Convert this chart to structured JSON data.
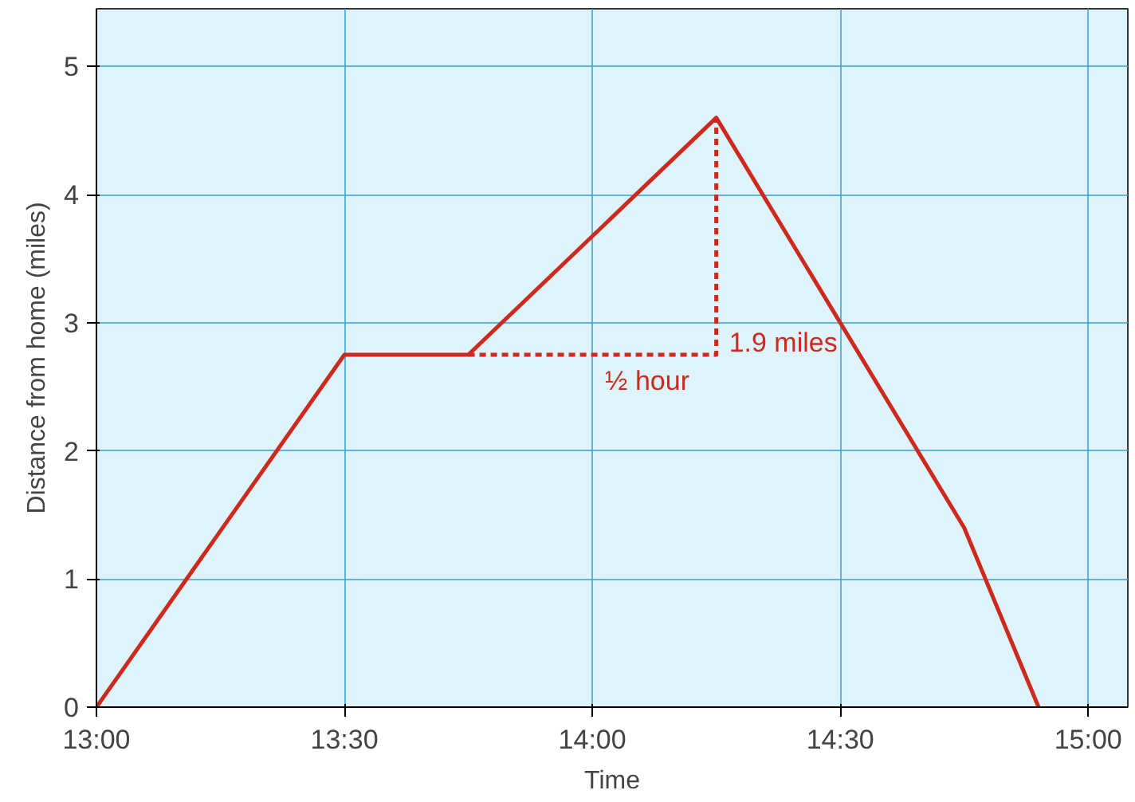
{
  "chart_data": {
    "type": "line",
    "xlabel": "Time",
    "ylabel": "Distance from home (miles)",
    "xlim": [
      13,
      15.08
    ],
    "ylim": [
      0,
      5.45
    ],
    "xticks": [
      {
        "value": 13,
        "label": "13:00"
      },
      {
        "value": 13.5,
        "label": "13:30"
      },
      {
        "value": 14,
        "label": "14:00"
      },
      {
        "value": 14.5,
        "label": "14:30"
      },
      {
        "value": 15,
        "label": "15:00"
      }
    ],
    "yticks": [
      0,
      1,
      2,
      3,
      4,
      5
    ],
    "grid": true,
    "marker": "none",
    "series": [
      {
        "color": "#cc2a1e",
        "line_style": "solid",
        "x": [
          13,
          13.5,
          13.75,
          14.25,
          14.75,
          14.9
        ],
        "values": [
          0,
          2.75,
          2.75,
          4.6,
          1.4,
          0
        ]
      },
      {
        "color": "#cc2a1e",
        "line_style": "dashed",
        "x": [
          13.75,
          14.25,
          14.25
        ],
        "values": [
          2.75,
          2.75,
          4.6
        ]
      }
    ],
    "annotations": [
      {
        "text": "½ hour",
        "x": 14.0,
        "y": 2.75
      },
      {
        "text": "1.9 miles",
        "x": 14.25,
        "y": 3.05
      }
    ]
  }
}
